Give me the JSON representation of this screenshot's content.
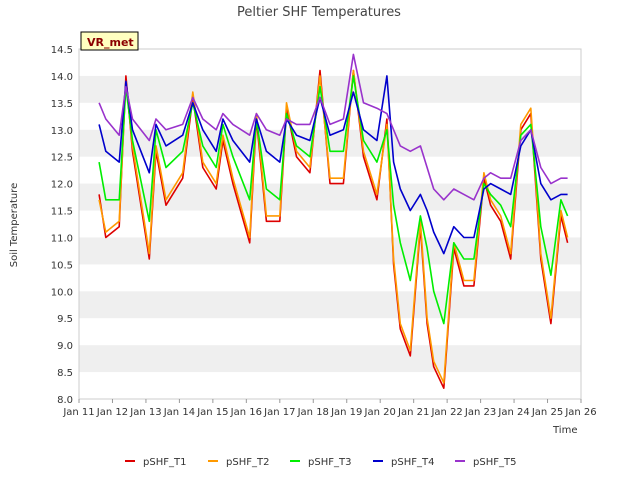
{
  "chart_data": {
    "type": "line",
    "title": "Peltier SHF Temperatures",
    "xlabel": "Time",
    "ylabel": "Soil Temperature",
    "badge": "VR_met",
    "xlim": [
      11,
      26
    ],
    "ylim": [
      8.0,
      14.5
    ],
    "x_ticks": [
      11,
      12,
      13,
      14,
      15,
      16,
      17,
      18,
      19,
      20,
      21,
      22,
      23,
      24,
      25,
      26
    ],
    "x_tick_labels": [
      "Jan 11",
      "Jan 12",
      "Jan 13",
      "Jan 14",
      "Jan 15",
      "Jan 16",
      "Jan 17",
      "Jan 18",
      "Jan 19",
      "Jan 20",
      "Jan 21",
      "Jan 22",
      "Jan 23",
      "Jan 24",
      "Jan 25",
      "Jan 26"
    ],
    "y_ticks": [
      8.0,
      8.5,
      9.0,
      9.5,
      10.0,
      10.5,
      11.0,
      11.5,
      12.0,
      12.5,
      13.0,
      13.5,
      14.0,
      14.5
    ],
    "y_tick_labels": [
      "8.0",
      "8.5",
      "9.0",
      "9.5",
      "10.0",
      "10.5",
      "11.0",
      "11.5",
      "12.0",
      "12.5",
      "13.0",
      "13.5",
      "14.0",
      "14.5"
    ],
    "grid": "horizontal bands",
    "legend_position": "bottom",
    "series": [
      {
        "name": "pSHF_T1",
        "color": "#dd0000",
        "x": [
          11.6,
          11.8,
          12.2,
          12.4,
          12.6,
          13.1,
          13.3,
          13.6,
          14.1,
          14.4,
          14.7,
          15.1,
          15.3,
          15.6,
          16.1,
          16.3,
          16.6,
          17.0,
          17.2,
          17.5,
          17.9,
          18.2,
          18.5,
          18.9,
          19.2,
          19.5,
          19.9,
          20.2,
          20.4,
          20.6,
          20.9,
          21.2,
          21.4,
          21.6,
          21.9,
          22.2,
          22.5,
          22.8,
          23.1,
          23.3,
          23.6,
          23.9,
          24.2,
          24.5,
          24.8,
          25.1,
          25.4,
          25.6
        ],
        "y": [
          11.8,
          11.0,
          11.2,
          14.0,
          12.6,
          10.6,
          12.6,
          11.6,
          12.1,
          13.6,
          12.3,
          11.9,
          12.8,
          12.0,
          10.9,
          13.2,
          11.3,
          11.3,
          13.4,
          12.5,
          12.2,
          14.1,
          12.0,
          12.0,
          14.1,
          12.5,
          11.7,
          13.2,
          10.5,
          9.3,
          8.8,
          11.2,
          9.4,
          8.6,
          8.2,
          10.8,
          10.1,
          10.1,
          12.1,
          11.6,
          11.3,
          10.6,
          13.0,
          13.3,
          10.6,
          9.4,
          11.4,
          10.9
        ]
      },
      {
        "name": "pSHF_T2",
        "color": "#ff9900",
        "x": [
          11.6,
          11.8,
          12.2,
          12.4,
          12.6,
          13.1,
          13.3,
          13.6,
          14.1,
          14.4,
          14.7,
          15.1,
          15.3,
          15.6,
          16.1,
          16.3,
          16.6,
          17.0,
          17.2,
          17.5,
          17.9,
          18.2,
          18.5,
          18.9,
          19.2,
          19.5,
          19.9,
          20.2,
          20.4,
          20.6,
          20.9,
          21.2,
          21.4,
          21.6,
          21.9,
          22.2,
          22.5,
          22.8,
          23.1,
          23.3,
          23.6,
          23.9,
          24.2,
          24.5,
          24.8,
          25.1,
          25.4,
          25.6
        ],
        "y": [
          11.7,
          11.1,
          11.3,
          13.9,
          12.7,
          10.7,
          12.7,
          11.7,
          12.2,
          13.7,
          12.4,
          12.0,
          12.9,
          12.1,
          11.0,
          13.3,
          11.4,
          11.4,
          13.5,
          12.6,
          12.3,
          14.0,
          12.1,
          12.1,
          14.1,
          12.6,
          11.8,
          13.1,
          10.6,
          9.4,
          8.9,
          11.3,
          9.5,
          8.7,
          8.3,
          10.9,
          10.2,
          10.2,
          12.2,
          11.7,
          11.4,
          10.7,
          13.1,
          13.4,
          10.7,
          9.5,
          11.5,
          11.0
        ]
      },
      {
        "name": "pSHF_T3",
        "color": "#00ee00",
        "x": [
          11.6,
          11.8,
          12.2,
          12.4,
          12.6,
          13.1,
          13.3,
          13.6,
          14.1,
          14.4,
          14.7,
          15.1,
          15.3,
          15.6,
          16.1,
          16.3,
          16.6,
          17.0,
          17.2,
          17.5,
          17.9,
          18.2,
          18.5,
          18.9,
          19.2,
          19.5,
          19.9,
          20.2,
          20.4,
          20.6,
          20.9,
          21.2,
          21.4,
          21.6,
          21.9,
          22.2,
          22.5,
          22.8,
          23.1,
          23.3,
          23.6,
          23.9,
          24.2,
          24.5,
          24.8,
          25.1,
          25.4,
          25.6
        ],
        "y": [
          12.4,
          11.7,
          11.7,
          13.8,
          12.8,
          11.3,
          13.0,
          12.3,
          12.6,
          13.5,
          12.7,
          12.3,
          13.1,
          12.5,
          11.7,
          13.2,
          11.9,
          11.7,
          13.3,
          12.7,
          12.5,
          13.8,
          12.6,
          12.6,
          14.0,
          12.8,
          12.4,
          13.0,
          11.6,
          10.9,
          10.2,
          11.4,
          10.8,
          10.0,
          9.4,
          10.9,
          10.6,
          10.6,
          12.0,
          11.8,
          11.6,
          11.2,
          12.9,
          13.1,
          11.2,
          10.3,
          11.7,
          11.4
        ]
      },
      {
        "name": "pSHF_T4",
        "color": "#0000cc",
        "x": [
          11.6,
          11.8,
          12.2,
          12.4,
          12.6,
          13.1,
          13.3,
          13.6,
          14.1,
          14.4,
          14.7,
          15.1,
          15.3,
          15.6,
          16.1,
          16.3,
          16.6,
          17.0,
          17.2,
          17.5,
          17.9,
          18.2,
          18.5,
          18.9,
          19.2,
          19.5,
          19.9,
          20.2,
          20.4,
          20.6,
          20.9,
          21.2,
          21.4,
          21.6,
          21.9,
          22.2,
          22.5,
          22.8,
          23.1,
          23.3,
          23.6,
          23.9,
          24.2,
          24.5,
          24.8,
          25.1,
          25.4,
          25.6
        ],
        "y": [
          13.1,
          12.6,
          12.4,
          13.9,
          13.0,
          12.2,
          13.1,
          12.7,
          12.9,
          13.5,
          13.0,
          12.6,
          13.2,
          12.8,
          12.4,
          13.2,
          12.6,
          12.4,
          13.2,
          12.9,
          12.8,
          13.6,
          12.9,
          13.0,
          13.7,
          13.0,
          12.8,
          14.0,
          12.4,
          11.9,
          11.5,
          11.8,
          11.5,
          11.1,
          10.7,
          11.2,
          11.0,
          11.0,
          11.9,
          12.0,
          11.9,
          11.8,
          12.7,
          13.0,
          12.0,
          11.7,
          11.8,
          11.8
        ]
      },
      {
        "name": "pSHF_T5",
        "color": "#9933cc",
        "x": [
          11.6,
          11.8,
          12.2,
          12.4,
          12.6,
          13.1,
          13.3,
          13.6,
          14.1,
          14.4,
          14.7,
          15.1,
          15.3,
          15.6,
          16.1,
          16.3,
          16.6,
          17.0,
          17.2,
          17.5,
          17.9,
          18.2,
          18.5,
          18.9,
          19.2,
          19.5,
          19.9,
          20.2,
          20.4,
          20.6,
          20.9,
          21.2,
          21.4,
          21.6,
          21.9,
          22.2,
          22.5,
          22.8,
          23.1,
          23.3,
          23.6,
          23.9,
          24.2,
          24.5,
          24.8,
          25.1,
          25.4,
          25.6
        ],
        "y": [
          13.5,
          13.2,
          12.9,
          13.8,
          13.2,
          12.8,
          13.2,
          13.0,
          13.1,
          13.6,
          13.2,
          13.0,
          13.3,
          13.1,
          12.9,
          13.3,
          13.0,
          12.9,
          13.2,
          13.1,
          13.1,
          13.6,
          13.1,
          13.2,
          14.4,
          13.5,
          13.4,
          13.3,
          13.0,
          12.7,
          12.6,
          12.7,
          12.3,
          11.9,
          11.7,
          11.9,
          11.8,
          11.7,
          12.1,
          12.2,
          12.1,
          12.1,
          12.8,
          13.0,
          12.3,
          12.0,
          12.1,
          12.1
        ]
      }
    ]
  }
}
